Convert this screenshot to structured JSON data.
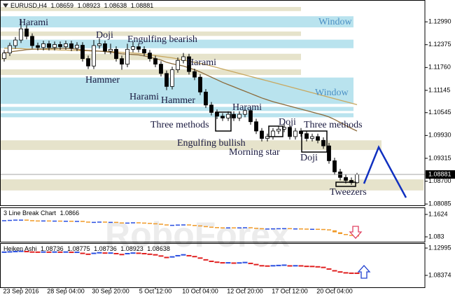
{
  "header": {
    "symbol": "EURUSD,H4"
  },
  "watermark": "RoboForex",
  "chart_data": [
    {
      "type": "candlestick",
      "categories": [
        null,
        null,
        null,
        "23 Sep 2016",
        null,
        null,
        null,
        null,
        null,
        null,
        null,
        "28 Sep 04:00",
        null,
        null,
        null,
        null,
        null,
        null,
        null,
        "30 Sep 20:00",
        null,
        null,
        null,
        null,
        null,
        null,
        null,
        "5 Oct 12:00",
        null,
        null,
        null,
        null,
        null,
        null,
        null,
        "10 Oct 04:00",
        null,
        null,
        null,
        null,
        null,
        null,
        null,
        "12 Oct 20:00",
        null,
        null,
        null,
        null,
        null,
        null,
        null,
        "17 Oct 12:00",
        null,
        null,
        null,
        null,
        null,
        null,
        null,
        "20 Oct 04:00",
        null,
        null,
        null,
        null
      ],
      "candles": {
        "open": [
          1.12,
          1.1215,
          1.1235,
          1.125,
          1.128,
          1.126,
          1.1235,
          1.123,
          1.124,
          1.123,
          1.1238,
          1.1232,
          1.124,
          1.1228,
          1.1236,
          1.12,
          1.118,
          1.1235,
          1.124,
          1.122,
          1.1225,
          1.12,
          1.1185,
          1.1225,
          1.1232,
          1.1225,
          1.1215,
          1.12,
          1.1185,
          1.116,
          1.1125,
          1.117,
          1.1195,
          1.1205,
          1.1165,
          1.115,
          1.111,
          1.1075,
          1.1055,
          1.1045,
          1.104,
          1.105,
          1.104,
          1.105,
          1.106,
          1.103,
          1.1005,
          1.0985,
          1.099,
          1.1005,
          1.101,
          1.1015,
          1.099,
          1.1005,
          1.0998,
          1.0985,
          1.099,
          1.098,
          1.0965,
          1.0925,
          1.0895,
          1.088,
          1.0872,
          1.08659
        ],
        "high": [
          1.1223,
          1.1243,
          1.1258,
          1.1305,
          1.129,
          1.1268,
          1.1243,
          1.1248,
          1.1248,
          1.1246,
          1.1246,
          1.1248,
          1.1248,
          1.1244,
          1.1244,
          1.1208,
          1.125,
          1.1255,
          1.1248,
          1.124,
          1.1233,
          1.1208,
          1.124,
          1.1245,
          1.124,
          1.1233,
          1.1223,
          1.1208,
          1.1193,
          1.1168,
          1.1178,
          1.1203,
          1.1215,
          1.1213,
          1.1173,
          1.1158,
          1.1118,
          1.1083,
          1.1063,
          1.1053,
          1.1058,
          1.1058,
          1.1058,
          1.1068,
          1.1068,
          1.1038,
          1.1013,
          1.0998,
          1.1013,
          1.1018,
          1.1025,
          1.1023,
          1.1013,
          1.1013,
          1.1006,
          1.0998,
          1.0998,
          1.0988,
          1.0973,
          1.0933,
          1.0903,
          1.0888,
          1.088,
          1.08923
        ],
        "low": [
          1.1192,
          1.1207,
          1.1227,
          1.1242,
          1.1252,
          1.1227,
          1.1222,
          1.1222,
          1.1222,
          1.1222,
          1.1224,
          1.1224,
          1.122,
          1.122,
          1.1192,
          1.1172,
          1.1172,
          1.1227,
          1.1212,
          1.1212,
          1.1192,
          1.117,
          1.1177,
          1.1217,
          1.1217,
          1.1207,
          1.1192,
          1.1177,
          1.1152,
          1.1115,
          1.1117,
          1.1162,
          1.1187,
          1.1157,
          1.1142,
          1.1102,
          1.1067,
          1.1047,
          1.1037,
          1.1032,
          1.1032,
          1.1032,
          1.1032,
          1.1042,
          1.1022,
          1.0997,
          1.0977,
          1.0977,
          1.0982,
          1.0997,
          1.1002,
          1.0982,
          1.0982,
          1.099,
          1.0977,
          1.0977,
          1.0972,
          1.0957,
          1.0917,
          1.0887,
          1.0872,
          1.0864,
          1.086,
          1.08638
        ],
        "close": [
          1.1215,
          1.1235,
          1.125,
          1.128,
          1.126,
          1.1235,
          1.123,
          1.124,
          1.123,
          1.1238,
          1.1232,
          1.124,
          1.1228,
          1.1236,
          1.12,
          1.118,
          1.1235,
          1.124,
          1.122,
          1.1225,
          1.12,
          1.1185,
          1.1225,
          1.1232,
          1.1225,
          1.1215,
          1.12,
          1.1185,
          1.116,
          1.1125,
          1.117,
          1.1195,
          1.1205,
          1.1165,
          1.115,
          1.111,
          1.1075,
          1.1055,
          1.1045,
          1.104,
          1.105,
          1.104,
          1.105,
          1.106,
          1.103,
          1.1005,
          1.0985,
          1.099,
          1.1005,
          1.101,
          1.1015,
          1.099,
          1.1005,
          1.0998,
          1.0985,
          1.099,
          1.098,
          1.0965,
          1.0925,
          1.0895,
          1.088,
          1.0872,
          1.08659,
          1.08881
        ]
      },
      "up_color": "#ffffff",
      "down_color": "#000000",
      "series": [
        {
          "color": "#c8a860",
          "values": [
            1.1228,
            1.1228,
            1.1227,
            1.1227,
            1.1226,
            1.1226,
            1.1225,
            1.1225,
            1.1224,
            1.1224,
            1.1223,
            1.1223,
            1.1222,
            1.1222,
            1.1221,
            1.1221,
            1.122,
            1.122,
            1.1219,
            1.1219,
            1.1218,
            1.1217,
            1.1216,
            1.1215,
            1.1214,
            1.1212,
            1.121,
            1.1208,
            1.1206,
            1.1204,
            1.1202,
            1.1199,
            1.1196,
            1.1193,
            1.119,
            1.1187,
            1.1184,
            1.118,
            1.1176,
            1.1172,
            1.1168,
            1.1164,
            1.116,
            1.1156,
            1.1152,
            1.1148,
            1.1144,
            1.114,
            1.1136,
            1.1132,
            1.1128,
            1.1124,
            1.112,
            1.1116,
            1.1112,
            1.1108,
            1.1104,
            1.11,
            1.1096,
            1.1092,
            1.1088,
            1.1084,
            1.108,
            1.1076
          ]
        },
        {
          "color": "#8b6a3a",
          "values": [
            1.1215,
            1.1218,
            1.122,
            1.1222,
            1.1224,
            1.1225,
            1.1226,
            1.1226,
            1.1227,
            1.1227,
            1.1228,
            1.1228,
            1.1227,
            1.1225,
            1.1223,
            1.1222,
            1.1221,
            1.122,
            1.1219,
            1.1217,
            1.1215,
            1.1213,
            1.1212,
            1.1211,
            1.121,
            1.1207,
            1.1204,
            1.12,
            1.1196,
            1.119,
            1.1186,
            1.1183,
            1.118,
            1.1175,
            1.117,
            1.1164,
            1.1157,
            1.115,
            1.1143,
            1.1136,
            1.113,
            1.1124,
            1.1118,
            1.1112,
            1.1106,
            1.11,
            1.1094,
            1.1089,
            1.1084,
            1.108,
            1.1076,
            1.1072,
            1.1068,
            1.1064,
            1.106,
            1.1056,
            1.1052,
            1.1048,
            1.1043,
            1.1036,
            1.1028,
            1.102,
            1.1012,
            1.1005
          ]
        }
      ],
      "zones": [
        {
          "low": 1.1328,
          "high": 1.1339,
          "color": "#e6e3cb"
        },
        {
          "low": 1.1284,
          "high": 1.1314,
          "color": "#b9e3ee"
        },
        {
          "low": 1.1261,
          "high": 1.1273,
          "color": "#e6e3cb"
        },
        {
          "low": 1.1228,
          "high": 1.1251,
          "color": "#b9e3ee"
        },
        {
          "low": 1.1196,
          "high": 1.1213,
          "color": "#e6e3cb"
        },
        {
          "low": 1.1156,
          "high": 1.1171,
          "color": "#e6e3cb"
        },
        {
          "low": 1.1078,
          "high": 1.1149,
          "color": "#b9e3ee"
        },
        {
          "low": 1.1059,
          "high": 1.107,
          "color": "#b9e3ee"
        },
        {
          "low": 1.1042,
          "high": 1.1053,
          "color": "#b9e3ee"
        },
        {
          "low": 1.0954,
          "high": 1.098,
          "color": "#e6e3cb"
        },
        {
          "low": 1.0845,
          "high": 1.0875,
          "color": "#e6e3cb"
        }
      ],
      "annotations": [
        "Harami",
        "Doji",
        "Engulfing bearish",
        "Window",
        "Harami",
        "Hammer",
        "Harami",
        "Hammer",
        "Window",
        "Harami",
        "Doji",
        "Three methods",
        "Three methods",
        "Engulfing bullish",
        "Morning star",
        "Doji",
        "Tweezers"
      ],
      "ylim": [
        1.0805,
        1.1354
      ],
      "yticks": [
        {
          "value": 1.1299,
          "label": "1.12990"
        },
        1.12375,
        {
          "value": 1.1176,
          "label": "1.11760"
        },
        1.11145,
        1.10545,
        {
          "value": 1.0993,
          "label": "1.09930"
        },
        1.09315,
        {
          "value": 1.087,
          "label": "1.08700"
        },
        1.08085
      ]
    },
    {
      "type": "line-break",
      "title": "3 Line Break Chart",
      "last": 1.0866,
      "ylim": [
        1.0656,
        1.1847
      ],
      "yticks": [
        1.1624,
        1.083
      ],
      "up_color": "#2a4fe0",
      "down_color": "#f09a28",
      "values": [
        1.142,
        1.143,
        1.144,
        1.144,
        1.142,
        1.141,
        1.14,
        1.141,
        1.14,
        1.1405,
        1.1395,
        1.14,
        1.139,
        1.1395,
        1.137,
        1.135,
        1.136,
        1.137,
        1.1355,
        1.136,
        1.134,
        1.132,
        1.1335,
        1.1345,
        1.1335,
        1.1325,
        1.131,
        1.1295,
        1.127,
        1.124,
        1.1255,
        1.1265,
        1.127,
        1.125,
        1.1235,
        1.121,
        1.119,
        1.1175,
        1.1165,
        1.116,
        1.1165,
        1.116,
        1.1165,
        1.117,
        1.115,
        1.1135,
        1.112,
        1.1125,
        1.113,
        1.1135,
        1.1138,
        1.112,
        1.1128,
        1.1122,
        1.1112,
        1.1115,
        1.1108,
        1.1095,
        1.106,
        1.099,
        1.093,
        1.09,
        1.088,
        1.0866
      ]
    },
    {
      "type": "heiken-ashi",
      "title": "Heiken Ashi",
      "header_values": [
        1.08736,
        1.08775,
        1.08736,
        1.08923,
        1.08638
      ],
      "ylim": [
        1.0636,
        1.1359
      ],
      "yticks": [
        1.12995,
        1.08374
      ],
      "up_color": "#2a4fe0",
      "down_color": "#e02020",
      "values": [
        1.123,
        1.1235,
        1.124,
        1.1245,
        1.124,
        1.1232,
        1.123,
        1.1232,
        1.123,
        1.1232,
        1.123,
        1.1232,
        1.1228,
        1.1228,
        1.121,
        1.1195,
        1.121,
        1.122,
        1.1215,
        1.1215,
        1.1205,
        1.119,
        1.1205,
        1.1215,
        1.1212,
        1.1205,
        1.1195,
        1.1185,
        1.1165,
        1.114,
        1.115,
        1.117,
        1.1185,
        1.117,
        1.1155,
        1.113,
        1.11,
        1.1075,
        1.106,
        1.105,
        1.105,
        1.1045,
        1.1048,
        1.1055,
        1.104,
        1.102,
        1.1,
        1.0995,
        1.1,
        1.1005,
        1.101,
        1.0998,
        1.1,
        1.0998,
        1.099,
        1.0988,
        1.0982,
        1.0972,
        1.0945,
        1.0915,
        1.0895,
        1.088,
        1.0874,
        1.08736
      ]
    }
  ]
}
